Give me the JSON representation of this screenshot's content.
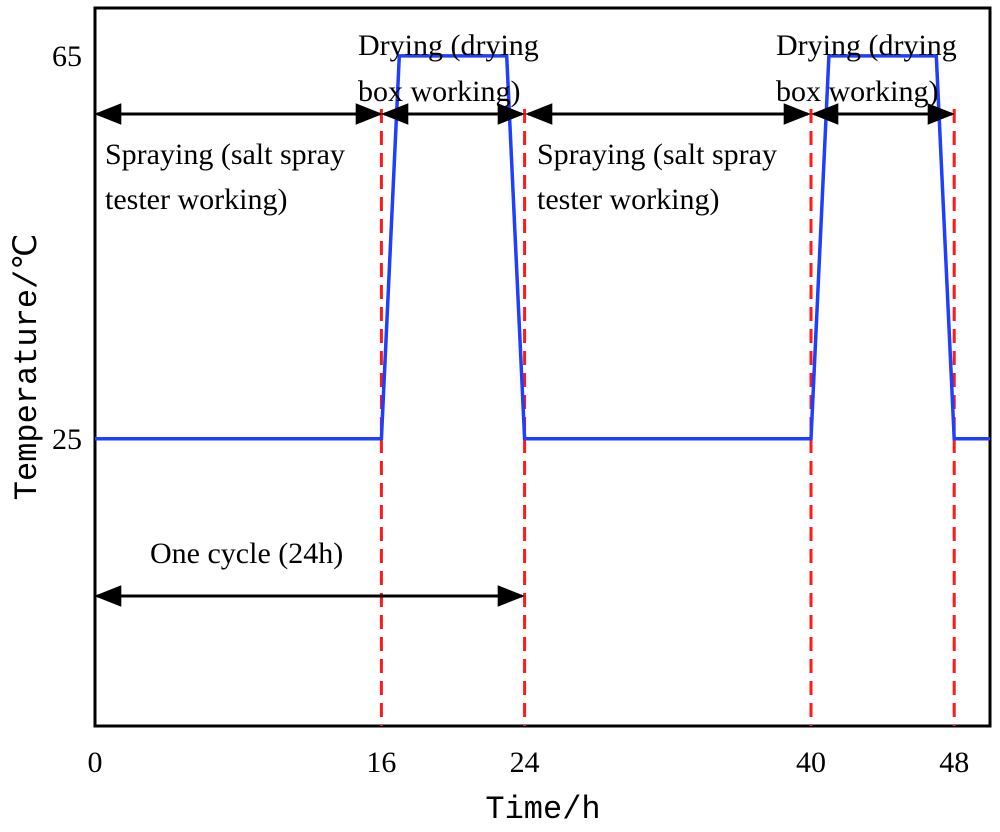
{
  "chart_data": {
    "type": "line",
    "xlabel": "Time/h",
    "ylabel": "Temperature/℃",
    "xlim": [
      0,
      50
    ],
    "ylim": [
      -5,
      70
    ],
    "x_ticks": [
      0,
      16,
      24,
      40,
      48
    ],
    "y_ticks": [
      25,
      65
    ],
    "series": [
      {
        "name": "Temperature",
        "color": "#1f3fff",
        "x": [
          0,
          16,
          17,
          23,
          24,
          40,
          41,
          47,
          48,
          50
        ],
        "y": [
          25,
          25,
          65,
          65,
          25,
          25,
          65,
          65,
          25,
          25
        ]
      }
    ],
    "vlines": [
      16,
      24,
      40,
      48
    ],
    "vline_color": "#ff1a1a",
    "annotations": [
      {
        "id": "spray1",
        "lines": [
          "Spraying (salt spray",
          "tester working)"
        ]
      },
      {
        "id": "dry1",
        "lines": [
          "Drying (drying",
          "box working)"
        ]
      },
      {
        "id": "spray2",
        "lines": [
          "Spraying (salt spray",
          "tester working)"
        ]
      },
      {
        "id": "dry2",
        "lines": [
          "Drying (drying",
          "box working)"
        ]
      },
      {
        "id": "cycle",
        "lines": [
          "One cycle (24h)"
        ]
      }
    ]
  }
}
